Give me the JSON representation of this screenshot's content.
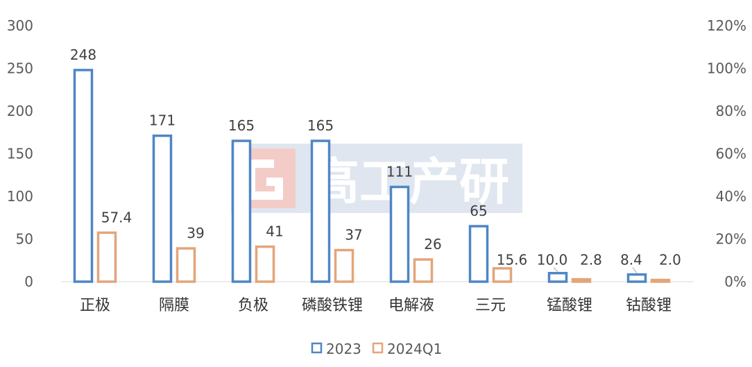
{
  "chart_data": {
    "type": "bar",
    "categories": [
      "正极",
      "隔膜",
      "负极",
      "磷酸铁锂",
      "电解液",
      "三元",
      "锰酸锂",
      "钴酸锂"
    ],
    "series": [
      {
        "name": "2023",
        "values": [
          248,
          171,
          165,
          165,
          111,
          65,
          10.0,
          8.4
        ],
        "labels": [
          "248",
          "171",
          "165",
          "165",
          "111",
          "65",
          "10.0",
          "8.4"
        ],
        "color": "#4f86c6"
      },
      {
        "name": "2024Q1",
        "values": [
          57.4,
          39,
          41,
          37,
          26,
          15.6,
          2.8,
          2.0
        ],
        "labels": [
          "57.4",
          "39",
          "41",
          "37",
          "26",
          "15.6",
          "2.8",
          "2.0"
        ],
        "color": "#e3a57a"
      }
    ],
    "ylim": [
      0,
      300
    ],
    "yticks": [
      "0",
      "50",
      "100",
      "150",
      "200",
      "250",
      "300"
    ],
    "y2lim": [
      0,
      120
    ],
    "y2ticks": [
      "0%",
      "20%",
      "40%",
      "60%",
      "80%",
      "100%",
      "120%"
    ],
    "grid": false,
    "legend_position": "bottom",
    "watermark": "高工产研"
  }
}
